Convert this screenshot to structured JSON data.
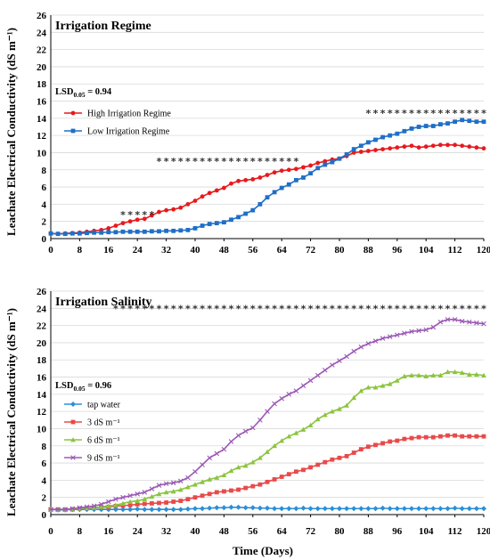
{
  "ylabel": "Leachate Electrical Conductivity (dS m⁻¹)",
  "xlabel": "Time (Days)",
  "chart_data": [
    {
      "type": "line",
      "title": "Irrigation Regime",
      "lsd_label": "LSD",
      "lsd_sub": "0.05",
      "lsd_value": " = 0.94",
      "xlim": [
        0,
        120
      ],
      "ylim": [
        0,
        26
      ],
      "x_ticks": [
        0,
        8,
        16,
        24,
        32,
        40,
        48,
        56,
        64,
        72,
        80,
        88,
        96,
        104,
        112,
        120
      ],
      "y_ticks": [
        0,
        2,
        4,
        6,
        8,
        10,
        12,
        14,
        16,
        18,
        20,
        22,
        24,
        26
      ],
      "x": [
        0,
        2,
        4,
        6,
        8,
        10,
        12,
        14,
        16,
        18,
        20,
        22,
        24,
        26,
        28,
        30,
        32,
        34,
        36,
        38,
        40,
        42,
        44,
        46,
        48,
        50,
        52,
        54,
        56,
        58,
        60,
        62,
        64,
        66,
        68,
        70,
        72,
        74,
        76,
        78,
        80,
        82,
        84,
        86,
        88,
        90,
        92,
        94,
        96,
        98,
        100,
        102,
        104,
        106,
        108,
        110,
        112,
        114,
        116,
        118,
        120
      ],
      "series": [
        {
          "name": "High Irrigation Regime",
          "color": "#e8191c",
          "marker": "circle",
          "values": [
            0.6,
            0.55,
            0.6,
            0.65,
            0.7,
            0.8,
            0.9,
            1.0,
            1.2,
            1.5,
            1.8,
            2.0,
            2.2,
            2.3,
            2.7,
            3.1,
            3.3,
            3.4,
            3.6,
            4.0,
            4.4,
            4.9,
            5.3,
            5.6,
            5.9,
            6.4,
            6.7,
            6.8,
            6.9,
            7.1,
            7.4,
            7.7,
            7.9,
            8.0,
            8.1,
            8.3,
            8.5,
            8.8,
            9.0,
            9.2,
            9.3,
            9.6,
            10.0,
            10.1,
            10.2,
            10.3,
            10.4,
            10.5,
            10.6,
            10.7,
            10.8,
            10.6,
            10.7,
            10.8,
            10.9,
            10.9,
            10.9,
            10.8,
            10.7,
            10.6,
            10.5
          ]
        },
        {
          "name": "Low Irrigation Regime",
          "color": "#1f6fc6",
          "marker": "square",
          "values": [
            0.6,
            0.55,
            0.55,
            0.6,
            0.6,
            0.65,
            0.7,
            0.7,
            0.75,
            0.75,
            0.8,
            0.8,
            0.8,
            0.8,
            0.85,
            0.85,
            0.9,
            0.9,
            0.95,
            1.0,
            1.2,
            1.5,
            1.7,
            1.8,
            1.9,
            2.2,
            2.5,
            2.9,
            3.3,
            4.0,
            4.8,
            5.4,
            5.9,
            6.3,
            6.8,
            7.1,
            7.6,
            8.2,
            8.6,
            8.9,
            9.3,
            9.8,
            10.4,
            10.8,
            11.2,
            11.5,
            11.8,
            12.0,
            12.2,
            12.5,
            12.8,
            13.0,
            13.1,
            13.1,
            13.3,
            13.4,
            13.6,
            13.8,
            13.7,
            13.6,
            13.6
          ]
        }
      ],
      "stars": [
        {
          "from": 20,
          "to": 28,
          "y": 3.0
        },
        {
          "from": 30,
          "to": 68,
          "y": 9.2
        },
        {
          "from": 88,
          "to": 120,
          "y": 14.8
        }
      ]
    },
    {
      "type": "line",
      "title": "Irrigation Salinity",
      "lsd_label": "LSD",
      "lsd_sub": "0.05",
      "lsd_value": " = 0.96",
      "xlim": [
        0,
        120
      ],
      "ylim": [
        0,
        26
      ],
      "x_ticks": [
        0,
        8,
        16,
        24,
        32,
        40,
        48,
        56,
        64,
        72,
        80,
        88,
        96,
        104,
        112,
        120
      ],
      "y_ticks": [
        0,
        2,
        4,
        6,
        8,
        10,
        12,
        14,
        16,
        18,
        20,
        22,
        24,
        26
      ],
      "x": [
        0,
        2,
        4,
        6,
        8,
        10,
        12,
        14,
        16,
        18,
        20,
        22,
        24,
        26,
        28,
        30,
        32,
        34,
        36,
        38,
        40,
        42,
        44,
        46,
        48,
        50,
        52,
        54,
        56,
        58,
        60,
        62,
        64,
        66,
        68,
        70,
        72,
        74,
        76,
        78,
        80,
        82,
        84,
        86,
        88,
        90,
        92,
        94,
        96,
        98,
        100,
        102,
        104,
        106,
        108,
        110,
        112,
        114,
        116,
        118,
        120
      ],
      "series": [
        {
          "name": "tap water",
          "color": "#2b8fd6",
          "marker": "diamond",
          "values": [
            0.6,
            0.55,
            0.55,
            0.6,
            0.6,
            0.6,
            0.6,
            0.6,
            0.6,
            0.6,
            0.6,
            0.6,
            0.65,
            0.6,
            0.6,
            0.6,
            0.6,
            0.6,
            0.6,
            0.65,
            0.7,
            0.7,
            0.75,
            0.8,
            0.8,
            0.85,
            0.85,
            0.8,
            0.8,
            0.75,
            0.75,
            0.7,
            0.7,
            0.7,
            0.7,
            0.75,
            0.7,
            0.7,
            0.7,
            0.7,
            0.7,
            0.7,
            0.7,
            0.7,
            0.7,
            0.7,
            0.75,
            0.7,
            0.7,
            0.7,
            0.7,
            0.7,
            0.7,
            0.7,
            0.7,
            0.7,
            0.75,
            0.7,
            0.7,
            0.7,
            0.7
          ]
        },
        {
          "name": "3 dS m⁻¹",
          "color": "#e84a4a",
          "marker": "square",
          "values": [
            0.6,
            0.6,
            0.6,
            0.6,
            0.7,
            0.75,
            0.8,
            0.85,
            0.9,
            1.0,
            1.05,
            1.1,
            1.2,
            1.25,
            1.3,
            1.35,
            1.4,
            1.5,
            1.6,
            1.8,
            2.0,
            2.2,
            2.4,
            2.6,
            2.7,
            2.8,
            2.9,
            3.1,
            3.3,
            3.5,
            3.8,
            4.1,
            4.4,
            4.7,
            5.0,
            5.2,
            5.5,
            5.8,
            6.1,
            6.4,
            6.6,
            6.8,
            7.2,
            7.6,
            7.9,
            8.1,
            8.3,
            8.5,
            8.6,
            8.8,
            8.9,
            9.0,
            9.0,
            9.0,
            9.1,
            9.2,
            9.2,
            9.1,
            9.1,
            9.1,
            9.1
          ]
        },
        {
          "name": "6 dS m⁻¹",
          "color": "#8cc43f",
          "marker": "triangle",
          "values": [
            0.6,
            0.6,
            0.6,
            0.65,
            0.7,
            0.75,
            0.8,
            0.9,
            1.0,
            1.1,
            1.3,
            1.5,
            1.6,
            1.8,
            2.1,
            2.4,
            2.6,
            2.7,
            2.9,
            3.2,
            3.5,
            3.8,
            4.1,
            4.3,
            4.6,
            5.1,
            5.5,
            5.7,
            6.1,
            6.6,
            7.3,
            8.0,
            8.6,
            9.1,
            9.5,
            9.9,
            10.4,
            11.1,
            11.6,
            12.0,
            12.3,
            12.7,
            13.6,
            14.4,
            14.8,
            14.8,
            15.0,
            15.2,
            15.6,
            16.1,
            16.2,
            16.2,
            16.1,
            16.2,
            16.2,
            16.6,
            16.6,
            16.5,
            16.3,
            16.3,
            16.2
          ]
        },
        {
          "name": "9 dS m⁻¹",
          "color": "#9b59b6",
          "marker": "cross",
          "values": [
            0.6,
            0.6,
            0.6,
            0.7,
            0.8,
            0.9,
            1.0,
            1.2,
            1.5,
            1.8,
            2.0,
            2.2,
            2.4,
            2.6,
            3.0,
            3.4,
            3.6,
            3.7,
            3.9,
            4.3,
            5.0,
            5.8,
            6.6,
            7.1,
            7.6,
            8.5,
            9.2,
            9.7,
            10.1,
            11.0,
            12.0,
            12.9,
            13.5,
            14.0,
            14.4,
            15.0,
            15.6,
            16.2,
            16.8,
            17.4,
            17.9,
            18.4,
            19.0,
            19.5,
            19.9,
            20.2,
            20.5,
            20.7,
            20.9,
            21.1,
            21.3,
            21.4,
            21.5,
            21.8,
            22.4,
            22.7,
            22.7,
            22.5,
            22.4,
            22.3,
            22.2
          ]
        }
      ],
      "stars": [
        {
          "from": 18,
          "to": 120,
          "y": 24.2
        }
      ]
    }
  ]
}
